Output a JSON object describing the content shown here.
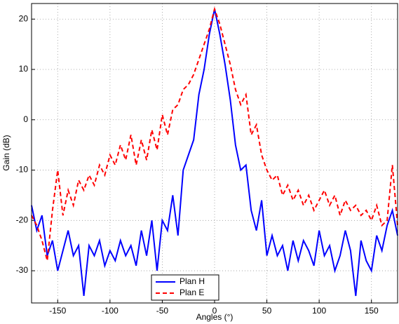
{
  "chart_data": {
    "type": "line",
    "x_label": "Angles (°)",
    "y_label": "Gain (dB)",
    "x": [
      -175,
      -170,
      -165,
      -160,
      -155,
      -150,
      -145,
      -140,
      -135,
      -130,
      -125,
      -120,
      -115,
      -110,
      -105,
      -100,
      -95,
      -90,
      -85,
      -80,
      -75,
      -70,
      -65,
      -60,
      -55,
      -50,
      -45,
      -40,
      -35,
      -30,
      -25,
      -20,
      -15,
      -10,
      -5,
      0,
      5,
      10,
      15,
      20,
      25,
      30,
      35,
      40,
      45,
      50,
      55,
      60,
      65,
      70,
      75,
      80,
      85,
      90,
      95,
      100,
      105,
      110,
      115,
      120,
      125,
      130,
      135,
      140,
      145,
      150,
      155,
      160,
      165,
      170,
      175
    ],
    "series": [
      {
        "name": "Plan H",
        "color": "#0000ff",
        "dash": false,
        "values": [
          -17,
          -22,
          -19,
          -27,
          -24,
          -30,
          -26,
          -22,
          -27,
          -25,
          -35,
          -25,
          -27,
          -24,
          -29,
          -26,
          -28,
          -24,
          -27,
          -25,
          -29,
          -22,
          -27,
          -20,
          -30,
          -20,
          -22,
          -15,
          -23,
          -10,
          -7,
          -4,
          5,
          10,
          17,
          22,
          17,
          11,
          4,
          -5,
          -10,
          -9,
          -18,
          -22,
          -16,
          -27,
          -23,
          -27,
          -25,
          -30,
          -24,
          -28,
          -24,
          -26,
          -29,
          -22,
          -27,
          -25,
          -30,
          -27,
          -22,
          -26,
          -35,
          -24,
          -28,
          -30,
          -23,
          -26,
          -21,
          -18,
          -23
        ]
      },
      {
        "name": "Plan E",
        "color": "#ff0000",
        "dash": true,
        "values": [
          -19,
          -21,
          -24,
          -28,
          -18,
          -10,
          -19,
          -14,
          -17,
          -12,
          -14,
          -11,
          -13,
          -9,
          -11,
          -7,
          -9,
          -5,
          -8,
          -3,
          -9,
          -4,
          -8,
          -2,
          -6,
          1,
          -3,
          2,
          3,
          6,
          7,
          9,
          12,
          15,
          18,
          22,
          19,
          15,
          11,
          6,
          3,
          5,
          -3,
          -1,
          -7,
          -10,
          -12,
          -11,
          -15,
          -13,
          -16,
          -14,
          -17,
          -15,
          -18,
          -16,
          -14,
          -17,
          -15,
          -19,
          -16,
          -18,
          -17,
          -19,
          -18,
          -20,
          -17,
          -21,
          -20,
          -9,
          -21
        ]
      }
    ],
    "xlim": [
      -175,
      175
    ],
    "ylim": [
      -36.4,
      23.1
    ],
    "xticks": [
      -150,
      -100,
      -50,
      0,
      50,
      100,
      150
    ],
    "yticks": [
      -30,
      -20,
      -10,
      0,
      10,
      20
    ],
    "grid": true,
    "legend": "lower center"
  }
}
